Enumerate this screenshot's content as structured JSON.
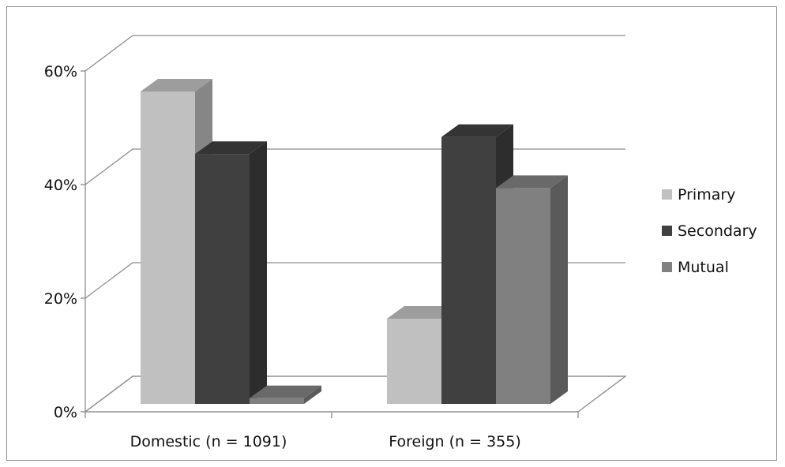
{
  "chart_data": {
    "type": "bar",
    "style": "3d-clustered-column",
    "categories": [
      "Domestic (n = 1091)",
      "Foreign (n = 355)"
    ],
    "series": [
      {
        "name": "Primary",
        "values": [
          55,
          15
        ],
        "color": "#c0c0c0"
      },
      {
        "name": "Secondary",
        "values": [
          44,
          47
        ],
        "color": "#404040"
      },
      {
        "name": "Mutual",
        "values": [
          1,
          38
        ],
        "color": "#808080"
      }
    ],
    "ylim": [
      0,
      60
    ],
    "yticks": [
      "0%",
      "20%",
      "40%",
      "60%"
    ],
    "grid": true,
    "legend_position": "right",
    "title": "",
    "xlabel": "",
    "ylabel": ""
  }
}
